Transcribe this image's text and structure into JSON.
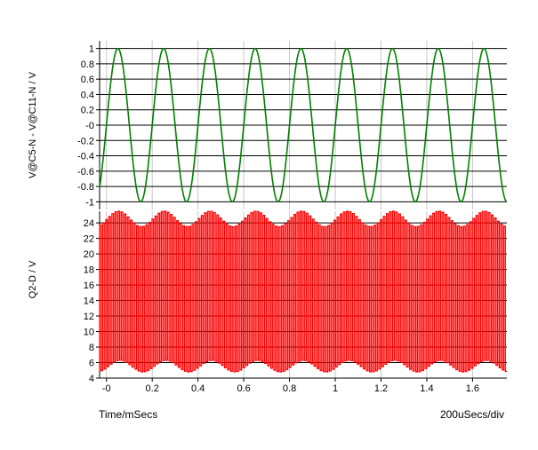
{
  "chart_data": [
    {
      "type": "line",
      "ylabel": "V@C5-N - V@C11-N / V",
      "ylim": [
        -1.1,
        1.1
      ],
      "y_ticks": [
        1,
        0.8,
        0.6,
        0.4,
        0.2,
        0,
        -0.2,
        -0.4,
        -0.6,
        -0.8,
        -1
      ],
      "y_tick_labels": [
        "1",
        "0.8",
        "0.6",
        "0.4",
        "0.2",
        "-0",
        "-0.2",
        "-0.4",
        "-0.6",
        "-0.8",
        "-1"
      ],
      "grid": true,
      "series": [
        {
          "color": "#008000",
          "waveform": "sine",
          "amplitude": 1,
          "frequency_khz": 5,
          "x_start_ms": -0.03,
          "x_end_ms": 1.75
        }
      ]
    },
    {
      "type": "line",
      "ylabel": "Q2-D / V",
      "ylim": [
        4,
        25.5
      ],
      "y_ticks": [
        24,
        22,
        20,
        18,
        16,
        14,
        12,
        10,
        8,
        6,
        4
      ],
      "y_tick_labels": [
        "24",
        "22",
        "20",
        "18",
        "16",
        "14",
        "12",
        "10",
        "8",
        "6",
        "4"
      ],
      "grid": true,
      "series": [
        {
          "color": "#ff0000",
          "waveform": "switching square wave with ripple envelope",
          "low_v": [
            4.8,
            6.3
          ],
          "high_v": [
            23.5,
            25.5
          ],
          "switching_cycles_per_ms": 74,
          "envelope_frequency_khz": 5,
          "x_start_ms": -0.03,
          "x_end_ms": 1.75
        }
      ]
    }
  ],
  "x_axis": {
    "xlabel": "Time/mSecs",
    "scale_label": "200uSecs/div",
    "xlim": [
      -0.03,
      1.75
    ],
    "ticks": [
      0,
      0.2,
      0.4,
      0.6,
      0.8,
      1,
      1.2,
      1.4,
      1.6
    ],
    "tick_labels": [
      "-0",
      "0.2",
      "0.4",
      "0.6",
      "0.8",
      "1",
      "1.2",
      "1.4",
      "1.6"
    ]
  }
}
